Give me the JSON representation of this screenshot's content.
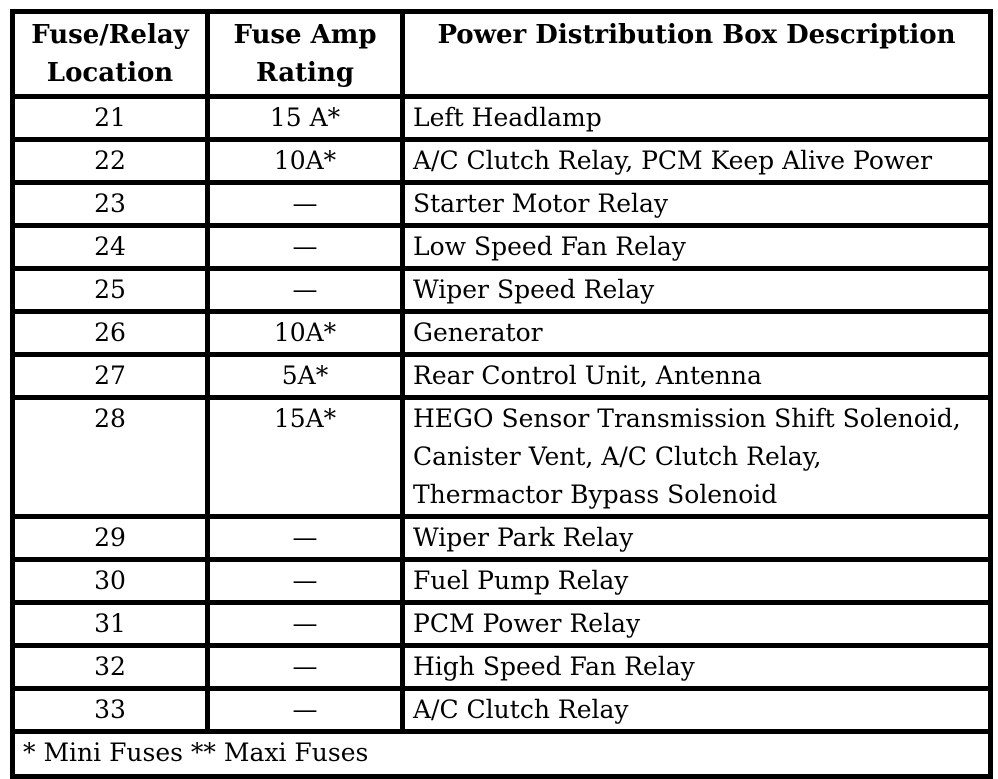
{
  "colors": {
    "border": "#000000",
    "background": "#ffffff",
    "text": "#000000"
  },
  "table": {
    "headers": {
      "location": "Fuse/Relay Location",
      "rating": "Fuse Amp Rating",
      "description": "Power Distribution Box Description"
    },
    "rows": [
      {
        "location": "21",
        "rating": "15 A*",
        "description": "Left Headlamp"
      },
      {
        "location": "22",
        "rating": "10A*",
        "description": "A/C Clutch Relay, PCM Keep Alive Power"
      },
      {
        "location": "23",
        "rating": "—",
        "description": "Starter Motor Relay"
      },
      {
        "location": "24",
        "rating": "—",
        "description": "Low Speed Fan Relay"
      },
      {
        "location": "25",
        "rating": "—",
        "description": "Wiper Speed Relay"
      },
      {
        "location": "26",
        "rating": "10A*",
        "description": "Generator"
      },
      {
        "location": "27",
        "rating": "5A*",
        "description": "Rear Control Unit, Antenna"
      },
      {
        "location": "28",
        "rating": "15A*",
        "description": "HEGO Sensor Transmission Shift Solenoid,\nCanister Vent, A/C Clutch Relay,\nThermactor Bypass Solenoid"
      },
      {
        "location": "29",
        "rating": "—",
        "description": "Wiper Park Relay"
      },
      {
        "location": "30",
        "rating": "—",
        "description": "Fuel Pump Relay"
      },
      {
        "location": "31",
        "rating": "—",
        "description": "PCM Power Relay"
      },
      {
        "location": "32",
        "rating": "—",
        "description": "High Speed Fan Relay"
      },
      {
        "location": "33",
        "rating": "—",
        "description": "A/C Clutch Relay"
      }
    ],
    "footnote": "* Mini Fuses ** Maxi Fuses"
  }
}
